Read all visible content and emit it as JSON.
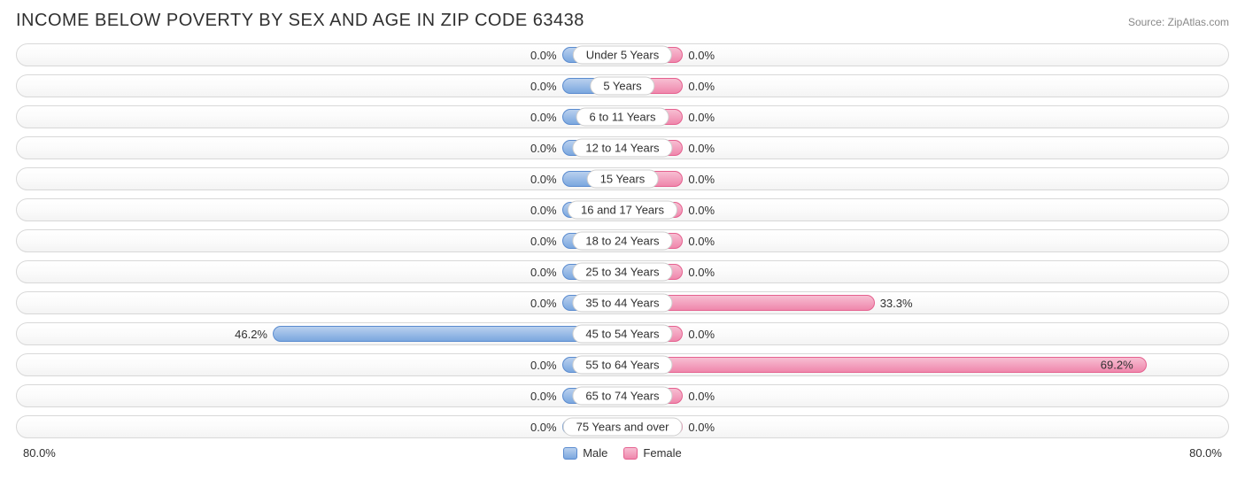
{
  "title": "INCOME BELOW POVERTY BY SEX AND AGE IN ZIP CODE 63438",
  "source": "Source: ZipAtlas.com",
  "axis_max": 80.0,
  "axis_max_label": "80.0%",
  "min_bar_pct": 10.0,
  "colors": {
    "male_top": "#b9d0ee",
    "male_bottom": "#7ba7df",
    "male_border": "#5a8bcf",
    "female_top": "#f7bed2",
    "female_bottom": "#ef87ac",
    "female_border": "#e5618f",
    "row_border": "#d8d8d8",
    "text": "#303030",
    "source_text": "#888888",
    "background": "#ffffff"
  },
  "legend": {
    "male": "Male",
    "female": "Female"
  },
  "rows": [
    {
      "category": "Under 5 Years",
      "male": 0.0,
      "male_label": "0.0%",
      "female": 0.0,
      "female_label": "0.0%"
    },
    {
      "category": "5 Years",
      "male": 0.0,
      "male_label": "0.0%",
      "female": 0.0,
      "female_label": "0.0%"
    },
    {
      "category": "6 to 11 Years",
      "male": 0.0,
      "male_label": "0.0%",
      "female": 0.0,
      "female_label": "0.0%"
    },
    {
      "category": "12 to 14 Years",
      "male": 0.0,
      "male_label": "0.0%",
      "female": 0.0,
      "female_label": "0.0%"
    },
    {
      "category": "15 Years",
      "male": 0.0,
      "male_label": "0.0%",
      "female": 0.0,
      "female_label": "0.0%"
    },
    {
      "category": "16 and 17 Years",
      "male": 0.0,
      "male_label": "0.0%",
      "female": 0.0,
      "female_label": "0.0%"
    },
    {
      "category": "18 to 24 Years",
      "male": 0.0,
      "male_label": "0.0%",
      "female": 0.0,
      "female_label": "0.0%"
    },
    {
      "category": "25 to 34 Years",
      "male": 0.0,
      "male_label": "0.0%",
      "female": 0.0,
      "female_label": "0.0%"
    },
    {
      "category": "35 to 44 Years",
      "male": 0.0,
      "male_label": "0.0%",
      "female": 33.3,
      "female_label": "33.3%"
    },
    {
      "category": "45 to 54 Years",
      "male": 46.2,
      "male_label": "46.2%",
      "female": 0.0,
      "female_label": "0.0%"
    },
    {
      "category": "55 to 64 Years",
      "male": 0.0,
      "male_label": "0.0%",
      "female": 69.2,
      "female_label": "69.2%"
    },
    {
      "category": "65 to 74 Years",
      "male": 0.0,
      "male_label": "0.0%",
      "female": 0.0,
      "female_label": "0.0%"
    },
    {
      "category": "75 Years and over",
      "male": 0.0,
      "male_label": "0.0%",
      "female": 0.0,
      "female_label": "0.0%"
    }
  ]
}
